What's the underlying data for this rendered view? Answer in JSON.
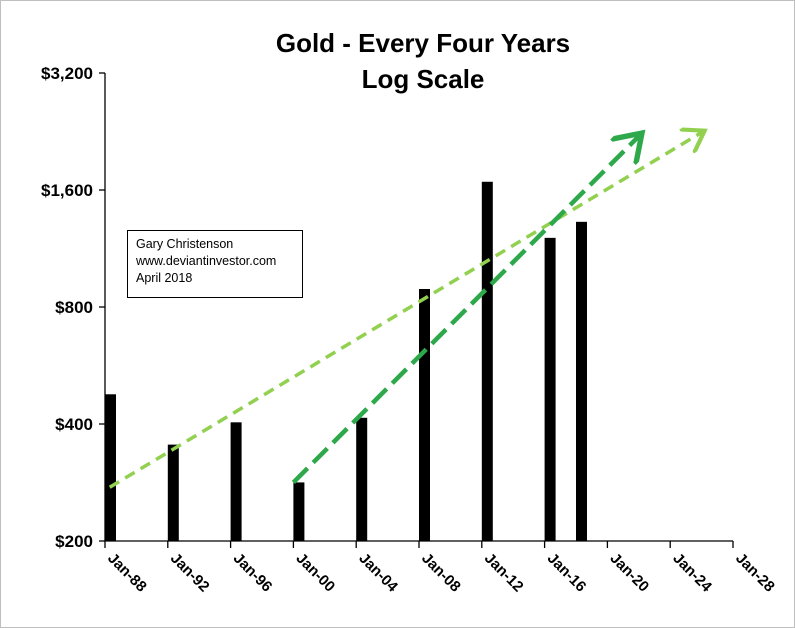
{
  "chart_data": {
    "type": "bar",
    "title": [
      "Gold - Every Four Years",
      "Log Scale"
    ],
    "y_scale": "log2",
    "ylim": [
      200,
      3200
    ],
    "yticks": [
      200,
      400,
      800,
      1600,
      3200
    ],
    "ytick_labels": [
      "$200",
      "$400",
      "$800",
      "$1,600",
      "$3,200"
    ],
    "xticks": [
      "Jan-88",
      "Jan-92",
      "Jan-96",
      "Jan-00",
      "Jan-04",
      "Jan-08",
      "Jan-12",
      "Jan-16",
      "Jan-20",
      "Jan-24",
      "Jan-28"
    ],
    "xlim": [
      1988.0,
      2028.0
    ],
    "bars": [
      {
        "x": 1988.0,
        "value": 477
      },
      {
        "x": 1992.0,
        "value": 354
      },
      {
        "x": 1996.0,
        "value": 404
      },
      {
        "x": 2000.0,
        "value": 283
      },
      {
        "x": 2004.0,
        "value": 415
      },
      {
        "x": 2008.0,
        "value": 890
      },
      {
        "x": 2012.0,
        "value": 1680
      },
      {
        "x": 2016.0,
        "value": 1205
      },
      {
        "x": 2018.0,
        "value": 1325
      }
    ],
    "trendlines": [
      {
        "color": "#92d050",
        "points": [
          [
            1988.3,
            275
          ],
          [
            2026.0,
            2250
          ]
        ]
      },
      {
        "color": "#2da84a",
        "points": [
          [
            2000.0,
            283
          ],
          [
            2022.0,
            2200
          ]
        ],
        "arrow": true
      }
    ],
    "bar_color": "#000000",
    "grid": false,
    "legend": "none"
  },
  "annotation": {
    "lines": [
      "Gary Christenson",
      "www.deviantinvestor.com",
      "April 2018"
    ]
  }
}
